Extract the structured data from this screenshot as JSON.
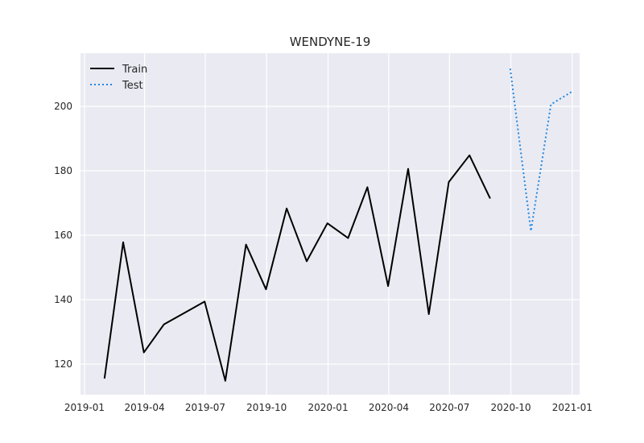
{
  "chart_data": {
    "type": "line",
    "title": "WENDYNE-19",
    "xlabel": "",
    "ylabel": "",
    "x_axis_type": "date",
    "xlim": [
      "2018-12-26",
      "2021-01-12"
    ],
    "ylim": [
      110.5,
      216.5
    ],
    "grid": true,
    "legend_position": "top-left",
    "background_color": "#eaeaf2",
    "grid_color": "#ffffff",
    "x_ticks": [
      "2019-01",
      "2019-04",
      "2019-07",
      "2019-10",
      "2020-01",
      "2020-04",
      "2020-07",
      "2020-10",
      "2021-01"
    ],
    "x_tick_dates": [
      "2019-01-01",
      "2019-04-01",
      "2019-07-01",
      "2019-10-01",
      "2020-01-01",
      "2020-04-01",
      "2020-07-01",
      "2020-10-01",
      "2021-01-01"
    ],
    "y_ticks": [
      120,
      140,
      160,
      180,
      200
    ],
    "series": [
      {
        "name": "Train",
        "color": "#000000",
        "style": "solid",
        "x": [
          "2019-01-31",
          "2019-02-28",
          "2019-03-31",
          "2019-04-30",
          "2019-05-31",
          "2019-06-30",
          "2019-07-31",
          "2019-08-31",
          "2019-09-30",
          "2019-10-31",
          "2019-11-30",
          "2019-12-31",
          "2020-01-31",
          "2020-02-29",
          "2020-03-31",
          "2020-04-30",
          "2020-05-31",
          "2020-06-30",
          "2020-07-31",
          "2020-08-31"
        ],
        "values": [
          115.5,
          157.8,
          123.6,
          132.3,
          135.9,
          139.4,
          114.8,
          157.1,
          143.2,
          168.3,
          151.9,
          163.7,
          159.1,
          174.9,
          144.2,
          180.6,
          135.5,
          176.5,
          184.8,
          171.4
        ]
      },
      {
        "name": "Test",
        "color": "#1e88e5",
        "style": "dotted",
        "x": [
          "2020-09-30",
          "2020-10-31",
          "2020-11-30",
          "2020-12-31"
        ],
        "values": [
          211.7,
          161.3,
          200.6,
          204.5
        ]
      }
    ]
  }
}
